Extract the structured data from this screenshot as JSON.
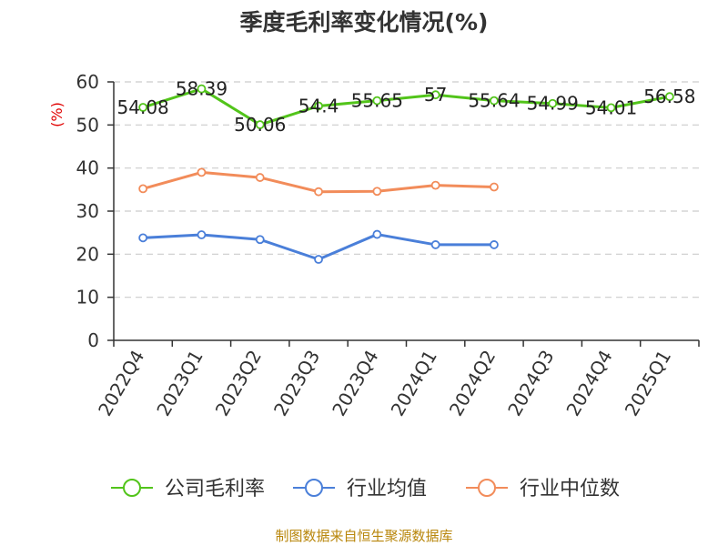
{
  "chart_data": {
    "type": "line",
    "title": "季度毛利率变化情况(%)",
    "ylabel": "(%)",
    "xlabel": "",
    "ylim": [
      0,
      60
    ],
    "yticks": [
      0,
      10,
      20,
      30,
      40,
      50,
      60
    ],
    "grid": true,
    "legend_position": "bottom",
    "categories": [
      "2022Q4",
      "2023Q1",
      "2023Q2",
      "2023Q3",
      "2023Q4",
      "2024Q1",
      "2024Q2",
      "2024Q3",
      "2024Q4",
      "2025Q1"
    ],
    "series": [
      {
        "name": "公司毛利率",
        "color": "#52c41a",
        "values": [
          54.08,
          58.39,
          50.06,
          54.4,
          55.65,
          57,
          55.64,
          54.99,
          54.01,
          56.58
        ],
        "labels": [
          "54.08",
          "58.39",
          "50.06",
          "54.4",
          "55.65",
          "57",
          "55.64",
          "54.99",
          "54.01",
          "56.58"
        ]
      },
      {
        "name": "行业均值",
        "color": "#4a7fd9",
        "values": [
          23.8,
          24.5,
          23.4,
          18.8,
          24.6,
          22.2,
          22.2,
          null,
          null,
          null
        ]
      },
      {
        "name": "行业中位数",
        "color": "#f28c5a",
        "values": [
          35.2,
          39,
          37.8,
          34.5,
          34.6,
          36,
          35.6,
          null,
          null,
          null
        ]
      }
    ]
  },
  "source": "制图数据来自恒生聚源数据库"
}
